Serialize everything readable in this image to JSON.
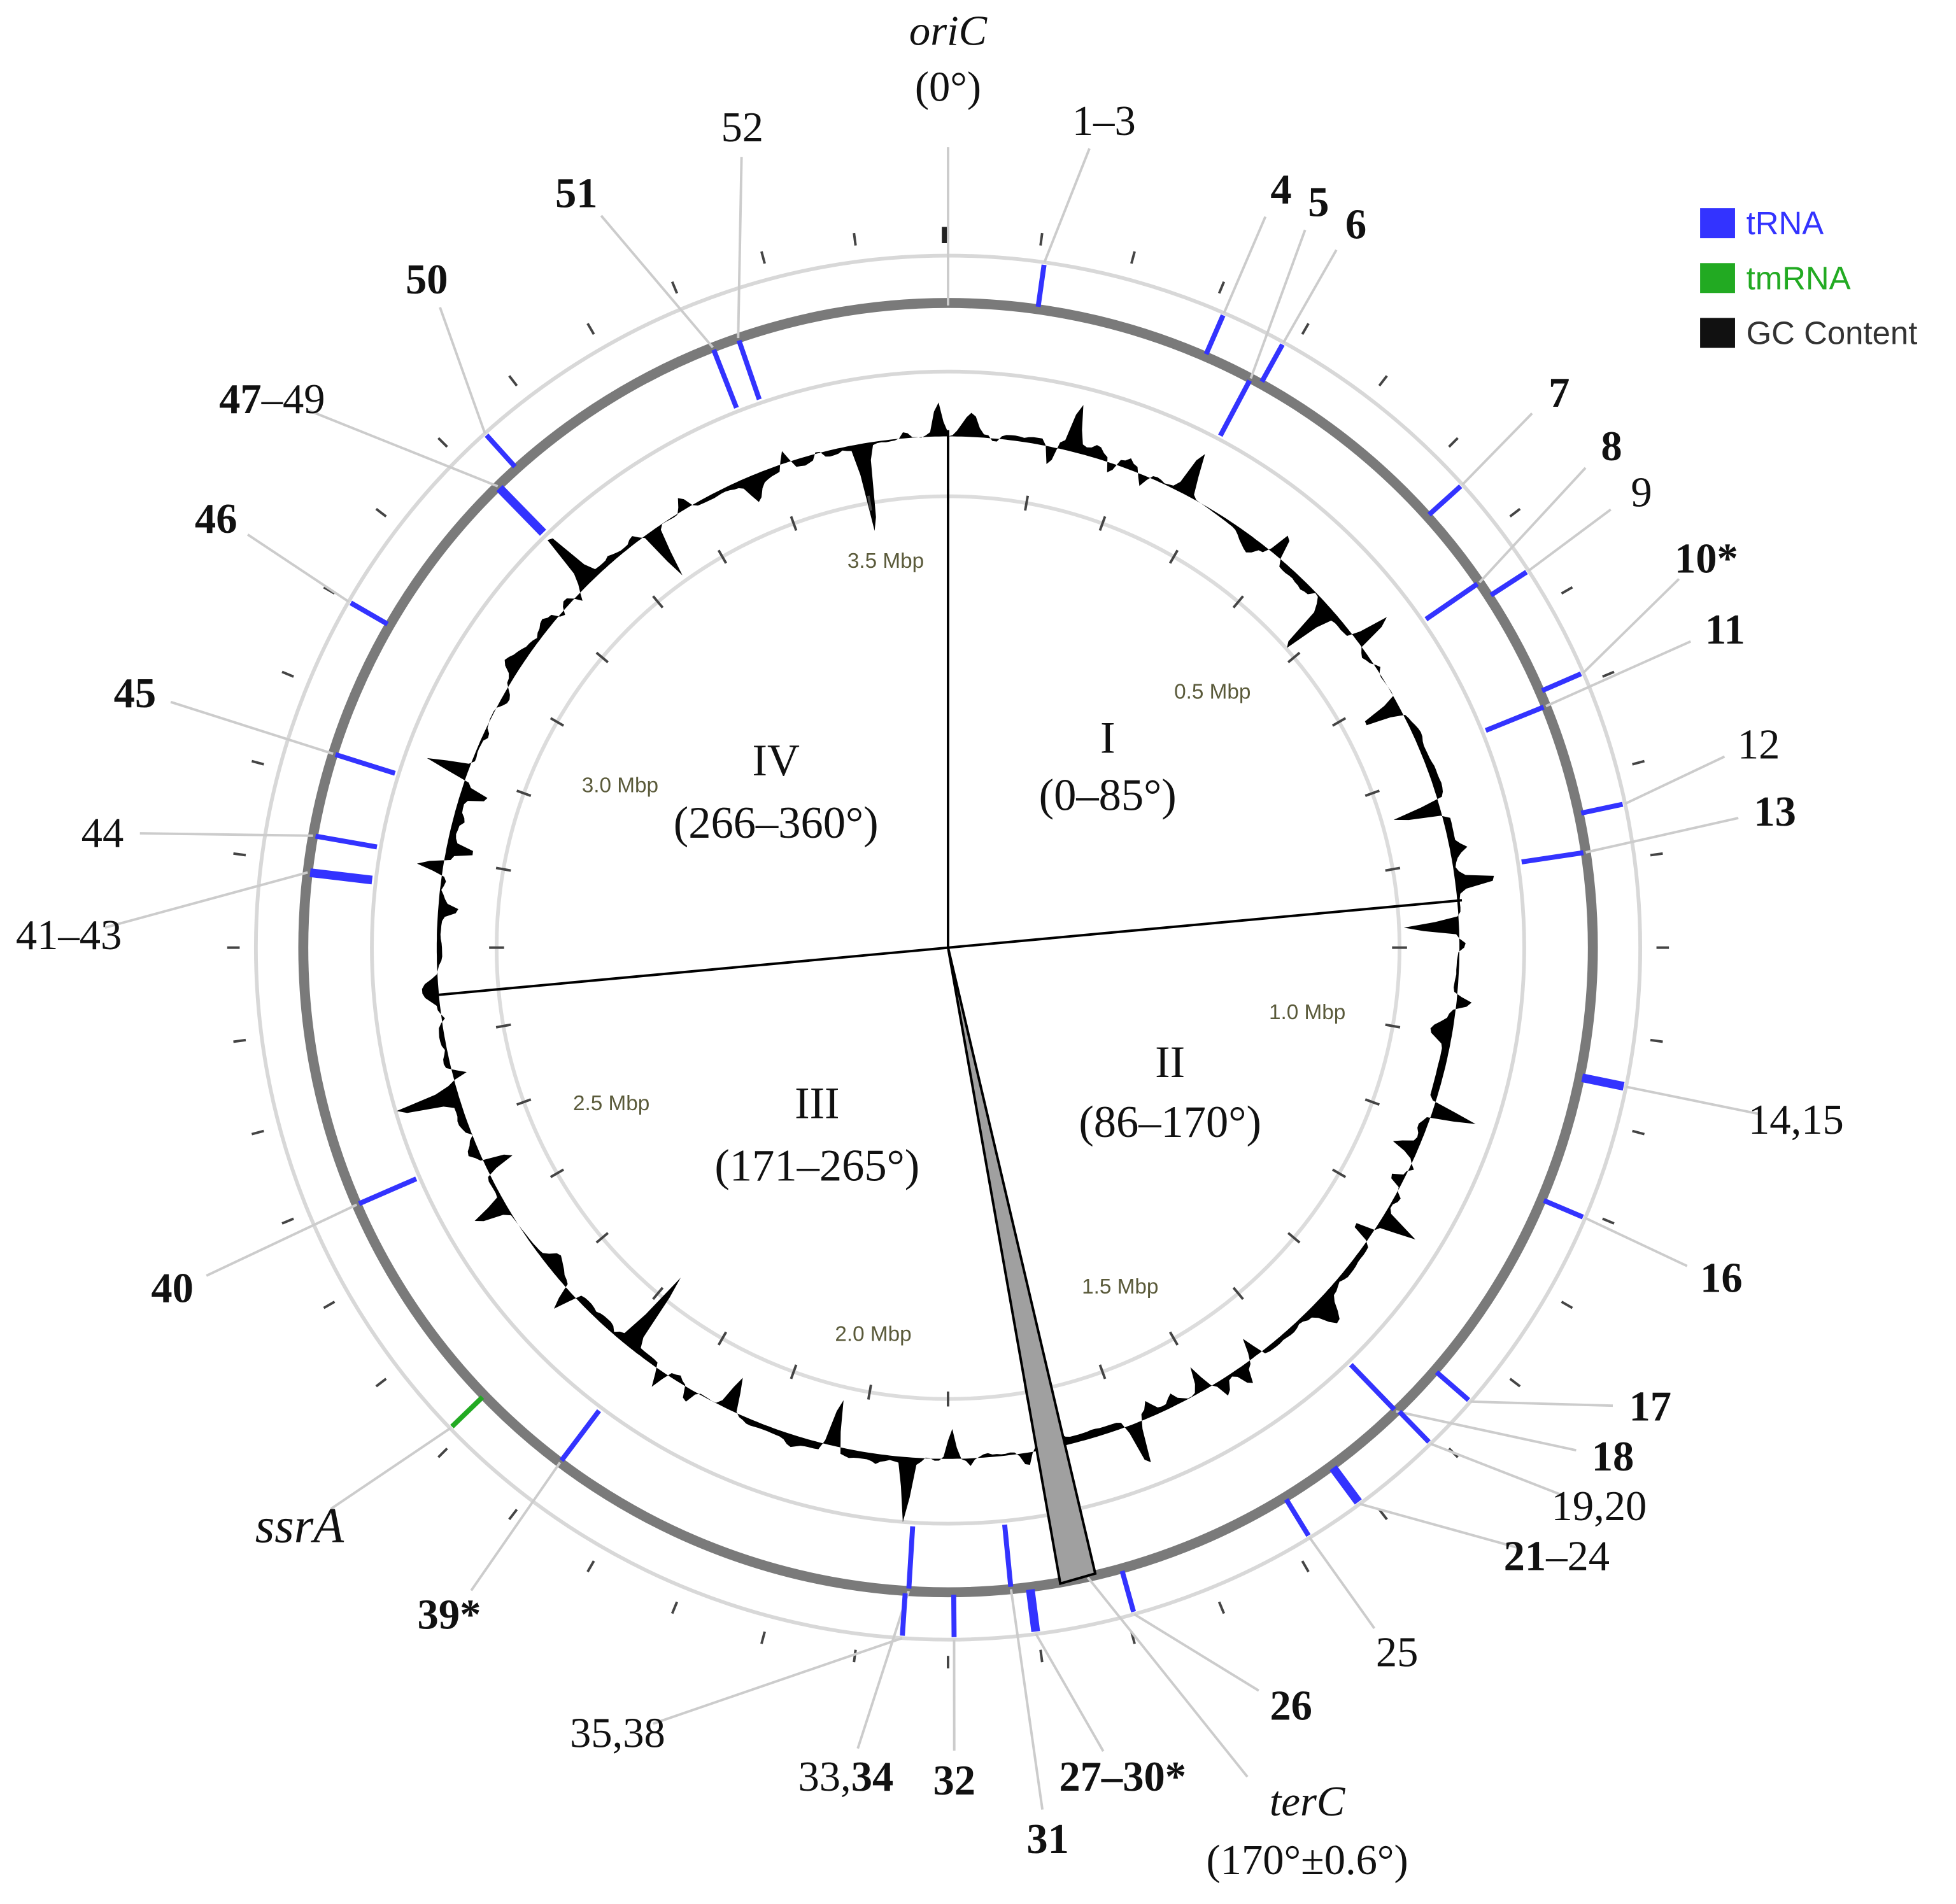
{
  "origin": {
    "name": "oriC",
    "angle": "(0°)"
  },
  "terminus": {
    "name": "terC",
    "angle": "(170°±0.6°)"
  },
  "regions": [
    {
      "name": "I",
      "range": "(0–85°)"
    },
    {
      "name": "II",
      "range": "(86–170°)"
    },
    {
      "name": "III",
      "range": "(171–265°)"
    },
    {
      "name": "IV",
      "range": "(266–360°)"
    }
  ],
  "scale_labels": [
    "0.5 Mbp",
    "1.0 Mbp",
    "1.5 Mbp",
    "2.0 Mbp",
    "2.5 Mbp",
    "3.0 Mbp",
    "3.5 Mbp"
  ],
  "gene_labels": [
    [
      "1–3"
    ],
    [
      "4"
    ],
    [
      "5"
    ],
    [
      "6"
    ],
    [
      "7"
    ],
    [
      "8"
    ],
    [
      "9"
    ],
    [
      "10*"
    ],
    [
      "11"
    ],
    [
      "12"
    ],
    [
      "13"
    ],
    [
      "14,15"
    ],
    [
      "16"
    ],
    [
      "17"
    ],
    [
      "18"
    ],
    [
      "19,20"
    ],
    [
      "21",
      "–24"
    ],
    [
      "25"
    ],
    [
      "26"
    ],
    [
      "27–30*"
    ],
    [
      "31"
    ],
    [
      "32"
    ],
    [
      "33,",
      "34"
    ],
    [
      "35,38"
    ],
    [
      "39*"
    ],
    [
      "ssrA"
    ],
    [
      "40"
    ],
    [
      "41–43"
    ],
    [
      "44"
    ],
    [
      "45"
    ],
    [
      "46"
    ],
    [
      "47",
      "–49"
    ],
    [
      "50"
    ],
    [
      "51"
    ],
    [
      "52"
    ]
  ],
  "legend": [
    {
      "label": "tRNA",
      "color": "#3333ff"
    },
    {
      "label": "tmRNA",
      "color": "#22aa22"
    },
    {
      "label": "GC Content",
      "color": "#111111"
    }
  ]
}
